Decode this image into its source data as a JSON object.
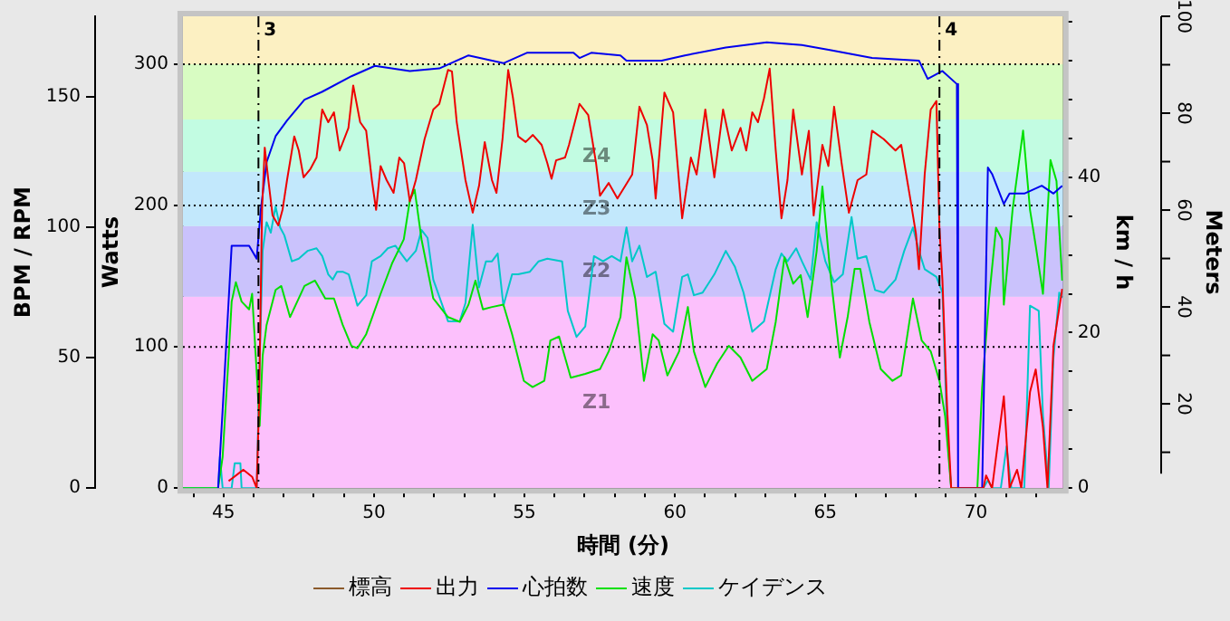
{
  "chart_data": {
    "type": "line",
    "xlabel": "時間 (分)",
    "ylabel": "Watts",
    "y2label": "BPM / RPM",
    "y3label": "km / h",
    "annotations": [
      "Meters",
      "100",
      "80",
      "60",
      "40",
      "20",
      {
        "text": "3",
        "x": 46.16
      },
      {
        "text": "4",
        "x": 68.79
      }
    ],
    "xlim": [
      43.65,
      72.9
    ],
    "xticks": [
      {
        "value": 44,
        "label": null
      },
      45,
      {
        "value": 46,
        "label": null
      },
      {
        "value": 47,
        "label": null
      },
      {
        "value": 48,
        "label": null
      },
      {
        "value": 49,
        "label": null
      },
      50,
      {
        "value": 51,
        "label": null
      },
      {
        "value": 52,
        "label": null
      },
      {
        "value": 53,
        "label": null
      },
      {
        "value": 54,
        "label": null
      },
      55,
      {
        "value": 56,
        "label": null
      },
      {
        "value": 57,
        "label": null
      },
      {
        "value": 58,
        "label": null
      },
      {
        "value": 59,
        "label": null
      },
      60,
      {
        "value": 61,
        "label": null
      },
      {
        "value": 62,
        "label": null
      },
      {
        "value": 63,
        "label": null
      },
      {
        "value": 64,
        "label": null
      },
      65,
      {
        "value": 66,
        "label": null
      },
      {
        "value": 67,
        "label": null
      },
      {
        "value": 68,
        "label": null
      },
      {
        "value": 69,
        "label": null
      },
      70,
      {
        "value": 71,
        "label": null
      },
      {
        "value": 72,
        "label": null
      }
    ],
    "ylim": [
      0,
      334
    ],
    "yticks": [
      0,
      100,
      200,
      300
    ],
    "y2lim": [
      0,
      181
    ],
    "y2ticks": [
      0,
      50,
      100,
      150
    ],
    "y3lim": [
      0,
      60.7
    ],
    "y3ticks": [
      0,
      {
        "value": 5,
        "label": null
      },
      {
        "value": 10,
        "label": null
      },
      {
        "value": 15,
        "label": null
      },
      20,
      {
        "value": 25,
        "label": null
      },
      {
        "value": 30,
        "label": null
      },
      {
        "value": 35,
        "label": null
      },
      40,
      {
        "value": 45,
        "label": null
      },
      {
        "value": 50,
        "label": null
      },
      {
        "value": 55,
        "label": null
      },
      {
        "value": 60,
        "label": null
      }
    ],
    "grid": false,
    "legend": "bottom",
    "bands": [
      {
        "axis": "y",
        "from": 0,
        "to": 135.5,
        "label": "Z1",
        "color": "#fcc0fc"
      },
      {
        "axis": "y",
        "from": 135.5,
        "to": 185.5,
        "label": "Z2",
        "color": "#cac2fc"
      },
      {
        "axis": "y",
        "from": 185.5,
        "to": 224,
        "label": "Z3",
        "color": "#c2e8fc"
      },
      {
        "axis": "y",
        "from": 224,
        "to": 261,
        "label": "Z4",
        "color": "#c2fce2"
      },
      {
        "axis": "y",
        "from": 261,
        "to": 300,
        "label": null,
        "color": "#d8fcc2"
      },
      {
        "axis": "y",
        "from": 300,
        "to": 334,
        "label": null,
        "color": "#fcf0c2"
      }
    ],
    "ref_lines": [
      {
        "axis": "y",
        "value": 100,
        "label": null,
        "color": "#000000",
        "line_style": "dotted"
      },
      {
        "axis": "y",
        "value": 200,
        "label": null,
        "color": "#000000",
        "line_style": "dotted"
      },
      {
        "axis": "y",
        "value": 300,
        "label": null,
        "color": "#000000",
        "line_style": "dotted"
      },
      {
        "axis": "x",
        "value": 46.16,
        "color": "#000000",
        "line_style": "dashed"
      },
      {
        "axis": "x",
        "value": 68.79,
        "color": "#000000",
        "line_style": "dashed"
      }
    ],
    "series": [
      {
        "name": "標高",
        "color": "#8b5a2b"
      },
      {
        "name": "出力",
        "color": "#ee0000",
        "axis": "y",
        "x": [
          45.17,
          45.66,
          45.95,
          46.1,
          46.18,
          46.28,
          46.37,
          46.49,
          46.63,
          46.82,
          46.96,
          47.11,
          47.35,
          47.5,
          47.66,
          47.89,
          48.09,
          48.28,
          48.48,
          48.67,
          48.86,
          49.15,
          49.31,
          49.54,
          49.74,
          49.93,
          50.07,
          50.22,
          50.42,
          50.65,
          50.84,
          51.0,
          51.19,
          51.39,
          51.68,
          51.97,
          52.17,
          52.46,
          52.59,
          52.75,
          53.04,
          53.28,
          53.49,
          53.68,
          53.92,
          54.07,
          54.27,
          54.46,
          54.62,
          54.79,
          55.04,
          55.28,
          55.57,
          55.76,
          55.9,
          56.05,
          56.35,
          56.48,
          56.83,
          57.12,
          57.38,
          57.51,
          57.8,
          58.09,
          58.35,
          58.58,
          58.82,
          59.07,
          59.26,
          59.36,
          59.65,
          59.94,
          60.24,
          60.53,
          60.72,
          61.01,
          61.31,
          61.6,
          61.89,
          62.18,
          62.37,
          62.57,
          62.76,
          62.96,
          63.15,
          63.35,
          63.54,
          63.74,
          63.93,
          64.22,
          64.45,
          64.61,
          64.9,
          65.1,
          65.29,
          65.54,
          65.78,
          66.07,
          66.36,
          66.55,
          66.94,
          67.33,
          67.52,
          67.82,
          68.01,
          68.11,
          68.3,
          68.5,
          68.69,
          68.79,
          68.89,
          69.04,
          69.18,
          70.25,
          70.34,
          70.54,
          70.93,
          71.12,
          71.37,
          71.51,
          71.8,
          71.99,
          72.23,
          72.38,
          72.58,
          72.87
        ],
        "values": [
          5,
          13,
          8,
          0,
          59,
          197,
          241,
          218,
          193,
          186,
          197,
          218,
          249,
          239,
          220,
          226,
          234,
          268,
          259,
          266,
          239,
          255,
          285,
          259,
          253,
          218,
          197,
          228,
          218,
          209,
          234,
          230,
          203,
          218,
          247,
          268,
          272,
          296,
          295,
          259,
          218,
          195,
          214,
          245,
          218,
          209,
          247,
          296,
          276,
          249,
          245,
          250,
          243,
          230,
          219,
          232,
          234,
          243,
          272,
          264,
          230,
          207,
          216,
          205,
          214,
          222,
          270,
          257,
          232,
          205,
          280,
          266,
          191,
          234,
          222,
          268,
          220,
          268,
          239,
          255,
          239,
          266,
          259,
          276,
          297,
          239,
          191,
          218,
          268,
          222,
          253,
          193,
          243,
          228,
          270,
          230,
          195,
          218,
          222,
          253,
          247,
          239,
          243,
          205,
          180,
          155,
          222,
          268,
          274,
          184,
          147,
          59,
          0,
          0,
          9,
          0,
          65,
          0,
          13,
          0,
          68,
          84,
          43,
          0,
          101,
          141
        ]
      },
      {
        "name": "心拍数",
        "color": "#0000ee",
        "axis": "y2",
        "x": [
          44.82,
          44.97,
          45.27,
          45.85,
          46.1,
          46.24,
          46.43,
          46.73,
          47.11,
          47.69,
          48.27,
          49.25,
          50.03,
          51.19,
          52.17,
          53.14,
          54.3,
          55.08,
          56.63,
          56.83,
          57.22,
          58.19,
          58.39,
          59.56,
          60.33,
          61.69,
          63.05,
          64.22,
          65.19,
          66.55,
          68.11,
          68.4,
          68.89,
          69.37,
          69.41,
          70.21,
          70.4,
          70.54,
          70.93,
          71.12,
          71.61,
          72.19,
          72.58,
          72.87
        ],
        "values": [
          0,
          30,
          93,
          93,
          88,
          107,
          125,
          135,
          141,
          149,
          152,
          158,
          162,
          160,
          161,
          166,
          163,
          167,
          167,
          165,
          167,
          166,
          164,
          164,
          166,
          169,
          171,
          170,
          168,
          165,
          164,
          157,
          160,
          155,
          0,
          0,
          123,
          120.5,
          109,
          113,
          113,
          116,
          113,
          116
        ]
      },
      {
        "name": "速度",
        "color": "#00e000",
        "axis": "y3",
        "x": [
          43.65,
          44.82,
          44.97,
          45.17,
          45.27,
          45.41,
          45.6,
          45.85,
          45.95,
          46.1,
          46.2,
          46.3,
          46.43,
          46.73,
          46.92,
          47.21,
          47.69,
          48.04,
          48.38,
          48.67,
          48.96,
          49.25,
          49.45,
          49.74,
          50.22,
          50.61,
          50.99,
          51.19,
          51.35,
          51.58,
          51.97,
          52.46,
          52.85,
          53.14,
          53.37,
          53.62,
          53.92,
          54.3,
          54.59,
          54.98,
          55.27,
          55.66,
          55.86,
          56.15,
          56.54,
          57.02,
          57.51,
          57.8,
          58.19,
          58.39,
          58.68,
          58.97,
          59.26,
          59.46,
          59.75,
          60.14,
          60.43,
          60.63,
          61.01,
          61.4,
          61.79,
          62.18,
          62.57,
          63.05,
          63.35,
          63.64,
          63.93,
          64.18,
          64.41,
          64.71,
          64.9,
          65.15,
          65.48,
          65.74,
          65.97,
          66.16,
          66.46,
          66.84,
          67.23,
          67.52,
          67.91,
          68.2,
          68.5,
          68.79,
          68.98,
          69.18,
          70.05,
          70.21,
          70.44,
          70.67,
          70.87,
          70.93,
          71.22,
          71.57,
          71.8,
          71.99,
          72.23,
          72.48,
          72.68,
          72.87
        ],
        "values": [
          0,
          0,
          4,
          17,
          24,
          26.5,
          24,
          23,
          25,
          15,
          8,
          17,
          21,
          25.5,
          26,
          22,
          26,
          26.7,
          24.4,
          24.4,
          21,
          18.3,
          18,
          19.8,
          25,
          29,
          32,
          37,
          38.4,
          32,
          24.4,
          22,
          21.4,
          23.6,
          26.7,
          23,
          23.3,
          23.6,
          19.8,
          13.8,
          13,
          13.8,
          19,
          19.5,
          14.2,
          14.7,
          15.3,
          17.6,
          22,
          29.7,
          24.4,
          13.8,
          19.8,
          19,
          14.5,
          17.6,
          23.3,
          17.6,
          13,
          16,
          18.3,
          16.8,
          13.8,
          15.3,
          21.4,
          29.7,
          26.3,
          27.4,
          22,
          30.5,
          38.8,
          28.2,
          16.8,
          22,
          28.2,
          28.2,
          21.4,
          15.3,
          13.8,
          14.5,
          24.4,
          19,
          17.6,
          13.8,
          9.2,
          0,
          0,
          13,
          24.4,
          33.5,
          32,
          23.6,
          35.8,
          46,
          35.8,
          31.2,
          25,
          42.2,
          39.5,
          26.7
        ]
      },
      {
        "name": "ケイデンス",
        "color": "#00c8c8",
        "axis": "y2",
        "x": [
          43.65,
          44.82,
          44.88,
          44.97,
          45.27,
          45.37,
          45.56,
          45.6,
          46.1,
          46.18,
          46.3,
          46.43,
          46.57,
          46.73,
          46.88,
          47.02,
          47.27,
          47.5,
          47.79,
          48.09,
          48.28,
          48.48,
          48.63,
          48.77,
          48.96,
          49.16,
          49.45,
          49.74,
          49.93,
          50.22,
          50.46,
          50.71,
          50.9,
          51.09,
          51.39,
          51.58,
          51.78,
          51.97,
          52.46,
          52.85,
          53.04,
          53.28,
          53.49,
          53.72,
          53.92,
          54.11,
          54.3,
          54.59,
          54.79,
          55.18,
          55.47,
          55.76,
          56.25,
          56.44,
          56.73,
          57.02,
          57.31,
          57.61,
          57.9,
          58.19,
          58.39,
          58.58,
          58.82,
          59.07,
          59.36,
          59.65,
          59.94,
          60.24,
          60.43,
          60.63,
          60.92,
          61.31,
          61.69,
          61.99,
          62.28,
          62.57,
          62.96,
          63.35,
          63.54,
          63.74,
          64.03,
          64.22,
          64.51,
          64.71,
          65.0,
          65.29,
          65.58,
          65.87,
          66.07,
          66.36,
          66.65,
          66.94,
          67.33,
          67.62,
          67.91,
          68.11,
          68.3,
          68.69,
          68.89,
          69.04,
          69.18,
          70.25,
          70.4,
          70.54,
          70.83,
          71.02,
          71.18,
          71.61,
          71.8,
          72.09,
          72.23,
          72.42,
          72.58,
          72.77,
          72.87
        ],
        "values": [
          0,
          0,
          12,
          0,
          0,
          9.5,
          9.5,
          0,
          0,
          39,
          91,
          102,
          98,
          108,
          100,
          97,
          87,
          88,
          91,
          92,
          89,
          82,
          80,
          83,
          83,
          82,
          70,
          74,
          87,
          89,
          92,
          93,
          90,
          87,
          91,
          99,
          96,
          80,
          64,
          64,
          71,
          101,
          77,
          87,
          87,
          90,
          70,
          82,
          82,
          83,
          87,
          88,
          87,
          68,
          58,
          62,
          89,
          87,
          89,
          87,
          100,
          87,
          93,
          81,
          83,
          63,
          60,
          81,
          82,
          74,
          75,
          82,
          91,
          85,
          75,
          60,
          64,
          84,
          90,
          87,
          92,
          87,
          80,
          102,
          87,
          79,
          82,
          104,
          88,
          89,
          76,
          75,
          80,
          91,
          100,
          91,
          84,
          81,
          75,
          23,
          0,
          0,
          3,
          0,
          0,
          16,
          0,
          0,
          70,
          68,
          28,
          0,
          50,
          75,
          73
        ]
      }
    ]
  }
}
